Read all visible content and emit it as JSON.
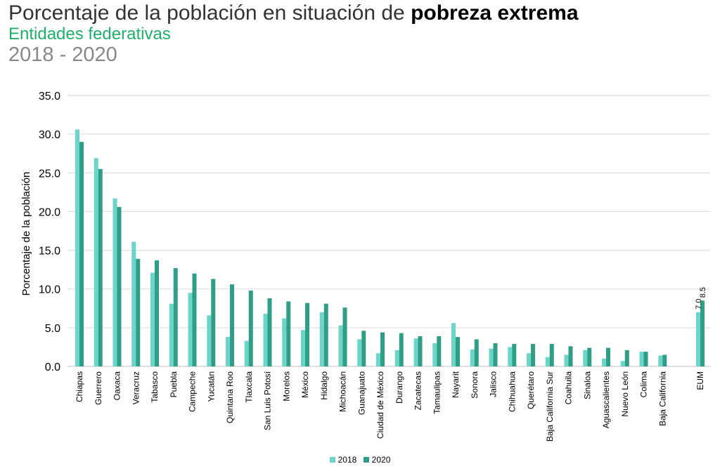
{
  "header": {
    "title_prefix": "Porcentaje de la población en situación de ",
    "title_emphasis": "pobreza extrema",
    "subtitle": "Entidades federativas",
    "years": "2018 - 2020"
  },
  "colors": {
    "series_2018": "#6bd6c7",
    "series_2020": "#2e9e87",
    "grid": "#d9d9d9",
    "axis": "#bfbfbf"
  },
  "chart_data": {
    "type": "bar",
    "title": "Porcentaje de la población en situación de pobreza extrema",
    "subtitle": "Entidades federativas 2018 - 2020",
    "xlabel": "",
    "ylabel": "Porcentaje de la población",
    "ylim": [
      0,
      35
    ],
    "yticks": [
      "0.0",
      "5.0",
      "10.0",
      "15.0",
      "20.0",
      "25.0",
      "30.0",
      "35.0"
    ],
    "grid": true,
    "legend_position": "bottom",
    "categories": [
      "Chiapas",
      "Guerrero",
      "Oaxaca",
      "Veracruz",
      "Tabasco",
      "Puebla",
      "Campeche",
      "Yucatán",
      "Quintana Roo",
      "Tlaxcala",
      "San Luis Potosí",
      "Morelos",
      "México",
      "Hidalgo",
      "Michoacán",
      "Guanajuato",
      "Ciudad de México",
      "Durango",
      "Zacatecas",
      "Tamaulipas",
      "Nayarit",
      "Sonora",
      "Jalisco",
      "Chihuahua",
      "Querétaro",
      "Baja California Sur",
      "Coahuila",
      "Sinaloa",
      "Aguascalientes",
      "Nuevo León",
      "Colima",
      "Baja California",
      "EUM"
    ],
    "series": [
      {
        "name": "2018",
        "values": [
          30.6,
          26.9,
          21.7,
          16.1,
          12.1,
          8.1,
          9.5,
          6.6,
          3.8,
          3.3,
          6.8,
          6.2,
          4.7,
          7.0,
          5.3,
          3.5,
          1.7,
          2.1,
          3.6,
          3.0,
          5.6,
          2.2,
          2.3,
          2.5,
          1.7,
          1.2,
          1.5,
          2.1,
          1.0,
          0.7,
          1.9,
          1.4,
          7.0
        ]
      },
      {
        "name": "2020",
        "values": [
          29.0,
          25.5,
          20.6,
          13.9,
          13.7,
          12.7,
          12.0,
          11.3,
          10.6,
          9.8,
          8.8,
          8.4,
          8.2,
          8.1,
          7.6,
          4.6,
          4.4,
          4.3,
          3.9,
          3.9,
          3.8,
          3.5,
          3.0,
          2.9,
          2.9,
          2.9,
          2.6,
          2.4,
          2.4,
          2.1,
          1.9,
          1.5,
          8.5
        ]
      }
    ],
    "data_labels": {
      "category": "EUM",
      "labels": [
        {
          "series": "2018",
          "text": "7.0"
        },
        {
          "series": "2020",
          "text": "8.5"
        }
      ]
    }
  }
}
